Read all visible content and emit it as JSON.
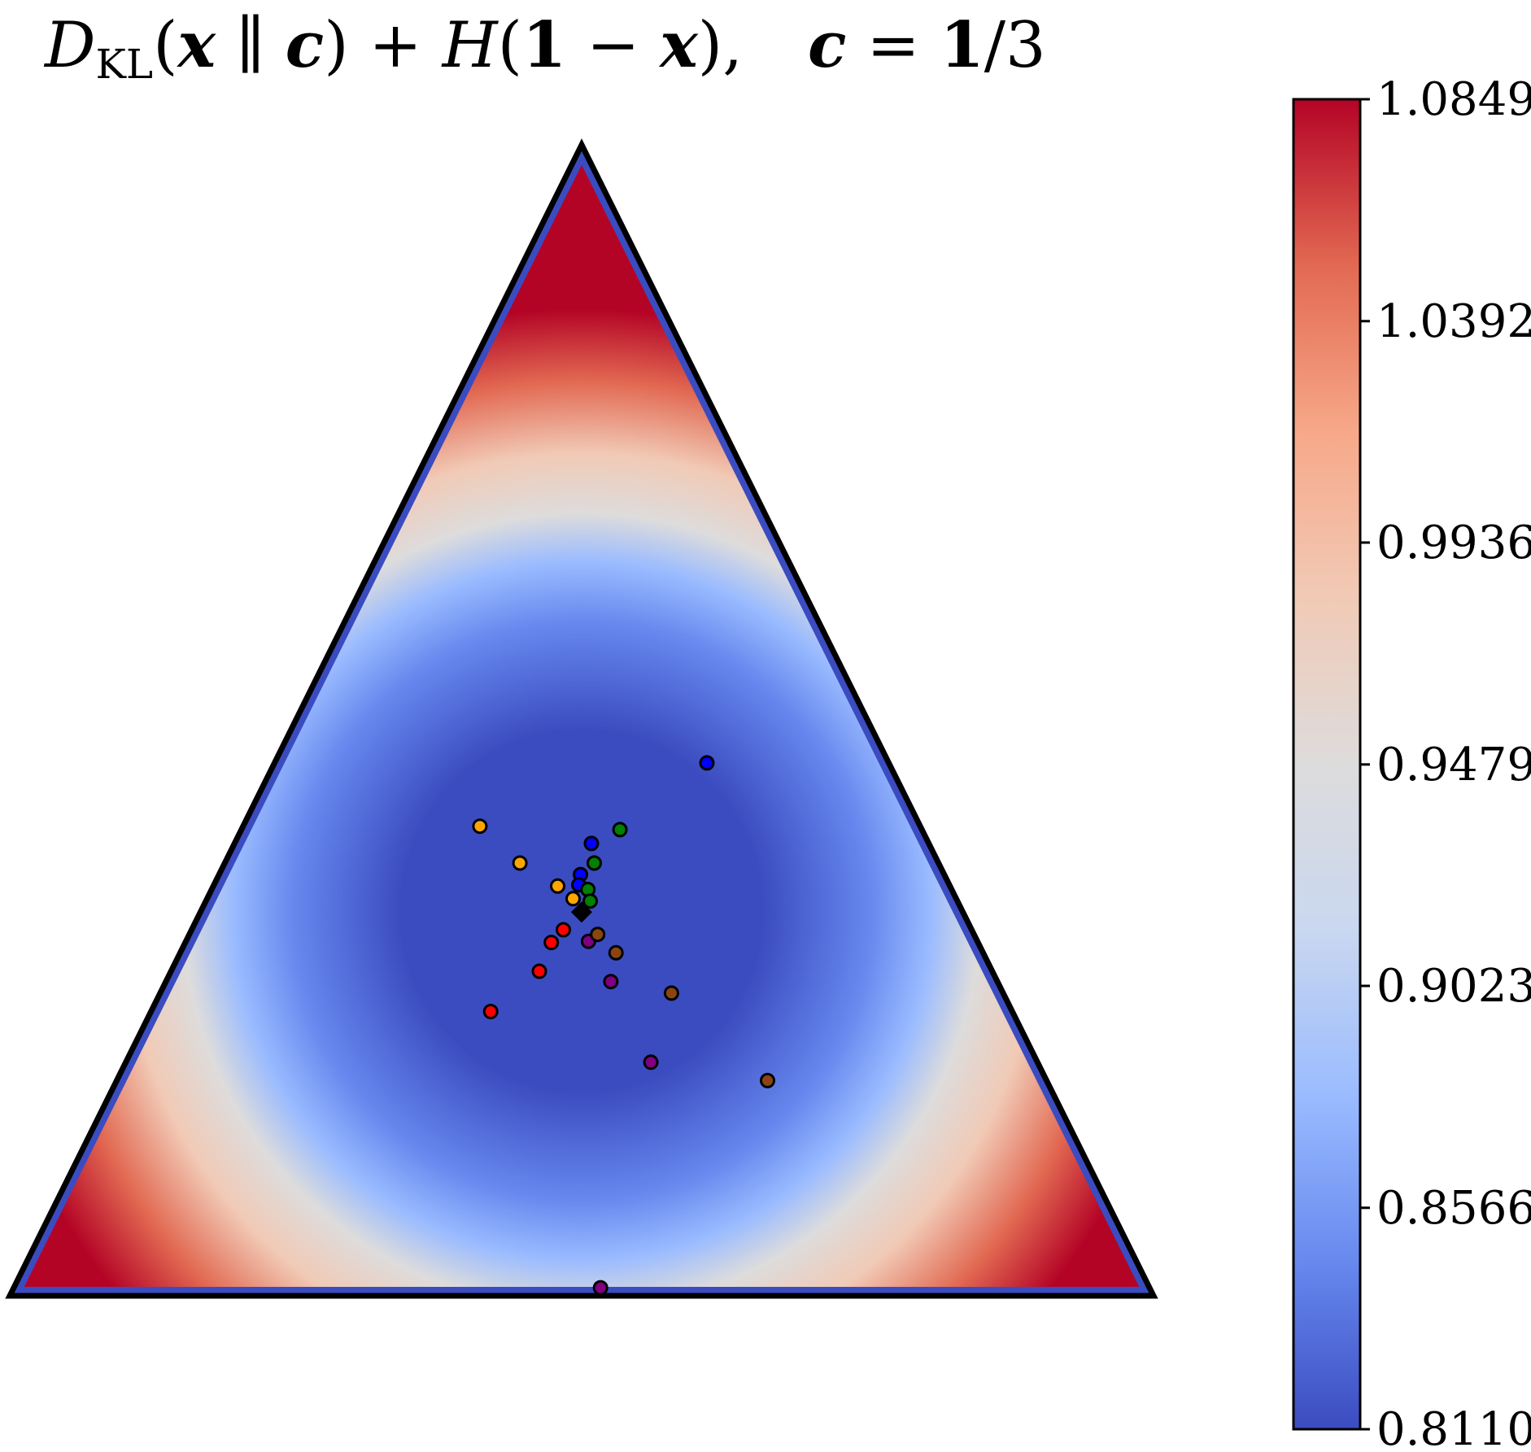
{
  "chart_data": {
    "type": "heatmap",
    "subtype": "ternary-simplex",
    "title": {
      "D": "D",
      "D_sub": "KL",
      "open1": "(",
      "x1": "x",
      "parallel": " ∥ ",
      "c1": "c",
      "close1": ")",
      "plus": " + ",
      "H": "H",
      "open2": "(",
      "one": "1",
      "minus": " − ",
      "x2": "x",
      "close2": "),",
      "c2": "c",
      "equals": " = ",
      "one2": "1",
      "slash3": "/3"
    },
    "colorbar": {
      "colormap": "coolwarm",
      "min": 0.811,
      "max": 1.0849,
      "ticks": [
        "0.8110",
        "0.8566",
        "0.9023",
        "0.9479",
        "0.9936",
        "1.0392",
        "1.0849"
      ],
      "colors": [
        "#3b4cc0",
        "#6788ee",
        "#9abbff",
        "#c9d7f0",
        "#dddcdc",
        "#f1cab6",
        "#f7a889",
        "#e26952",
        "#b40426"
      ]
    },
    "center_marker": {
      "shape": "diamond",
      "color": "#000000",
      "barycentric": [
        0.3333,
        0.3333,
        0.3333
      ]
    },
    "trajectories": [
      {
        "color": "#0000ff",
        "points": [
          [
            0.463,
            0.159,
            0.378
          ],
          [
            0.393,
            0.295,
            0.312
          ],
          [
            0.366,
            0.318,
            0.316
          ],
          [
            0.357,
            0.324,
            0.319
          ]
        ]
      },
      {
        "color": "#ffa500",
        "points": [
          [
            0.408,
            0.385,
            0.207
          ],
          [
            0.376,
            0.366,
            0.258
          ],
          [
            0.356,
            0.343,
            0.301
          ],
          [
            0.345,
            0.335,
            0.32
          ]
        ]
      },
      {
        "color": "#008000",
        "points": [
          [
            0.405,
            0.264,
            0.331
          ],
          [
            0.376,
            0.301,
            0.323
          ],
          [
            0.353,
            0.318,
            0.329
          ],
          [
            0.343,
            0.321,
            0.336
          ]
        ]
      },
      {
        "color": "#ff0000",
        "points": [
          [
            0.247,
            0.456,
            0.297
          ],
          [
            0.282,
            0.396,
            0.322
          ],
          [
            0.307,
            0.373,
            0.32
          ],
          [
            0.318,
            0.357,
            0.325
          ]
        ]
      },
      {
        "color": "#800080",
        "points": [
          [
            0.007,
            0.48,
            0.513
          ],
          [
            0.203,
            0.338,
            0.459
          ],
          [
            0.273,
            0.338,
            0.389
          ],
          [
            0.308,
            0.34,
            0.352
          ]
        ]
      },
      {
        "color": "#8b4513",
        "points": [
          [
            0.187,
            0.244,
            0.569
          ],
          [
            0.263,
            0.29,
            0.447
          ],
          [
            0.298,
            0.321,
            0.381
          ],
          [
            0.314,
            0.329,
            0.357
          ]
        ]
      }
    ]
  }
}
